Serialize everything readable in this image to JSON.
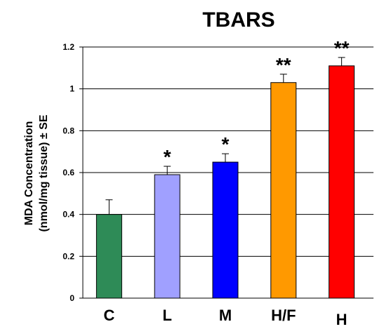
{
  "chart_data": {
    "type": "bar",
    "title": "TBARS",
    "ylabel_line1": "MDA Concentration",
    "ylabel_line2": "(nmol/mg tissue) ± SE",
    "xlabel": "",
    "categories": [
      "C",
      "L",
      "M",
      "H/F",
      "H"
    ],
    "values": [
      0.4,
      0.59,
      0.65,
      1.03,
      1.11
    ],
    "errors": [
      0.07,
      0.04,
      0.04,
      0.04,
      0.04
    ],
    "annotations": [
      "",
      "*",
      "*",
      "**",
      "**"
    ],
    "colors": [
      "#2e8b57",
      "#a0a0ff",
      "#0000ff",
      "#ff9900",
      "#ff0000"
    ],
    "ylim": [
      0,
      1.2
    ],
    "yticks": [
      0,
      0.2,
      0.4,
      0.6,
      0.8,
      1,
      1.2
    ],
    "ytick_labels": [
      "0",
      "0.2",
      "0.4",
      "0.6",
      "0.8",
      "1",
      "1.2"
    ],
    "grid": true,
    "legend": "none"
  }
}
